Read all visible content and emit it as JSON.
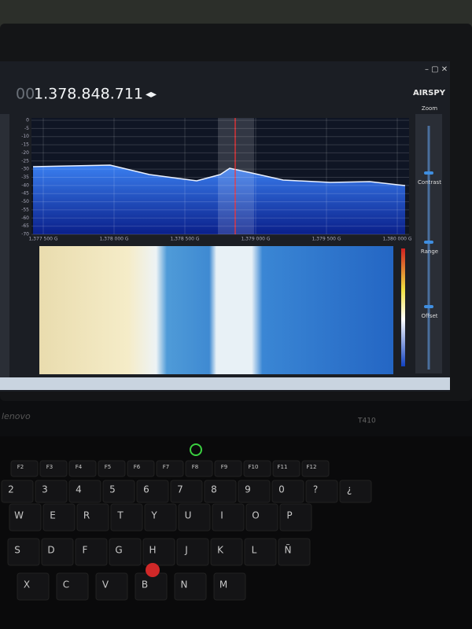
{
  "app": {
    "frequency_prefix": "00",
    "frequency": "1.378.848.711",
    "logo": "AIRSPY",
    "side_labels": [
      "Zoom",
      "Contrast",
      "Range",
      "Offset"
    ]
  },
  "spectrum": {
    "y_labels": [
      "0",
      "-5",
      "-10",
      "-15",
      "-20",
      "-25",
      "-30",
      "-35",
      "-40",
      "-45",
      "-50",
      "-55",
      "-60",
      "-65",
      "-70"
    ],
    "x_labels": [
      "1,377 500 G",
      "1,378 000 G",
      "1,378 500 G",
      "1,379 000 G",
      "1,379 500 G",
      "1,380 000 G"
    ]
  },
  "laptop": {
    "brand": "lenovo",
    "model": "T410"
  },
  "keyboard": {
    "rows": [
      [
        "F2",
        "F3",
        "F4",
        "F5",
        "F6",
        "F7",
        "F8",
        "F9",
        "F10",
        "F11",
        "F12"
      ],
      [
        "2",
        "3",
        "4",
        "5",
        "6",
        "7",
        "8",
        "9",
        "0",
        "?",
        "¿"
      ],
      [
        "W",
        "E",
        "R",
        "T",
        "Y",
        "U",
        "I",
        "O",
        "P"
      ],
      [
        "S",
        "D",
        "F",
        "G",
        "H",
        "J",
        "K",
        "L",
        "Ñ"
      ],
      [
        "X",
        "C",
        "V",
        "B",
        "N",
        "M"
      ]
    ]
  }
}
